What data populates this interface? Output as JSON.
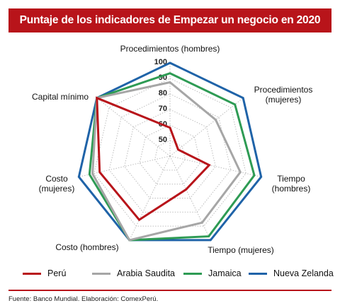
{
  "title": "Puntaje de los indicadores de Empezar un negocio en 2020",
  "footer": "Fuente: Banco Mundial. Elaboración: ComexPerú.",
  "chart_data": {
    "type": "radar",
    "title": "Puntaje de los indicadores de Empezar un negocio en 2020",
    "axes": [
      [
        "Procedimientos (hombres)"
      ],
      [
        "Procedimientos",
        "(mujeres)"
      ],
      [
        "Tiempo",
        "(hombres)"
      ],
      [
        "Tiempo (mujeres)"
      ],
      [
        "Costo (hombres)"
      ],
      [
        "Costo",
        "(mujeres)"
      ],
      [
        "Capital mínimo"
      ]
    ],
    "rlim": [
      40,
      100
    ],
    "ticks": [
      50,
      60,
      70,
      80,
      90,
      100
    ],
    "series": [
      {
        "name": "Perú",
        "color": "#b8141a",
        "values": [
          58.3,
          46.7,
          65.8,
          63.8,
          85.5,
          86.3,
          100
        ]
      },
      {
        "name": "Arabia Saudita",
        "color": "#a6a6a6",
        "values": [
          87.5,
          77.5,
          86.3,
          87.5,
          100,
          91,
          100
        ]
      },
      {
        "name": "Jamaica",
        "color": "#2e9b54",
        "values": [
          93.3,
          93.3,
          95.5,
          97.3,
          100,
          93,
          100
        ]
      },
      {
        "name": "Nueva Zelanda",
        "color": "#1f63a8",
        "values": [
          100,
          100,
          100,
          100,
          100,
          100,
          100
        ]
      }
    ],
    "legend_position": "bottom"
  }
}
